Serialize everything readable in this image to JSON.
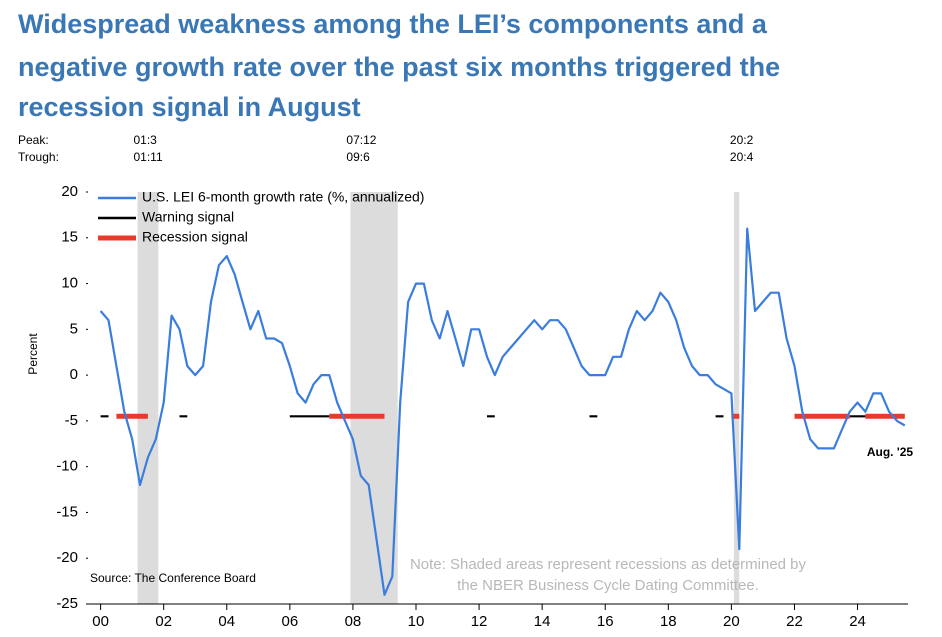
{
  "chart_data": {
    "type": "line",
    "title": [
      "Widespread weakness among the LEI’s components and a",
      "negative growth rate over the past six months triggered the",
      "recession signal in August"
    ],
    "peak_label": "Peak:",
    "trough_label": "Trough:",
    "recessions": [
      {
        "peak": "01:3",
        "trough": "01:11",
        "start": 2001.17,
        "end": 2001.83
      },
      {
        "peak": "07:12",
        "trough": "09:6",
        "start": 2007.92,
        "end": 2009.42
      },
      {
        "peak": "20:2",
        "trough": "20:4",
        "start": 2020.08,
        "end": 2020.25
      }
    ],
    "y_label": "Percent",
    "source": "Source: The Conference Board",
    "note": [
      "Note: Shaded areas represent recessions as determined by",
      "the NBER Business Cycle Dating Committee."
    ],
    "annotation": "Aug. '25",
    "xlim": [
      1999.6,
      2025.6
    ],
    "xticks": [
      {
        "value": 2000,
        "label": "00"
      },
      {
        "value": 2002,
        "label": "02"
      },
      {
        "value": 2004,
        "label": "04"
      },
      {
        "value": 2006,
        "label": "06"
      },
      {
        "value": 2008,
        "label": "08"
      },
      {
        "value": 2010,
        "label": "10"
      },
      {
        "value": 2012,
        "label": "12"
      },
      {
        "value": 2014,
        "label": "14"
      },
      {
        "value": 2016,
        "label": "16"
      },
      {
        "value": 2018,
        "label": "18"
      },
      {
        "value": 2020,
        "label": "20"
      },
      {
        "value": 2022,
        "label": "22"
      },
      {
        "value": 2024,
        "label": "24"
      }
    ],
    "ylim": [
      -25,
      20
    ],
    "yticks": [
      -25,
      -20,
      -15,
      -10,
      -5,
      0,
      5,
      10,
      15,
      20
    ],
    "x": [
      2000,
      2000.25,
      2000.5,
      2000.75,
      2001,
      2001.25,
      2001.5,
      2001.75,
      2002,
      2002.25,
      2002.5,
      2002.75,
      2003,
      2003.25,
      2003.5,
      2003.75,
      2004,
      2004.25,
      2004.5,
      2004.75,
      2005,
      2005.25,
      2005.5,
      2005.75,
      2006,
      2006.25,
      2006.5,
      2006.75,
      2007,
      2007.25,
      2007.5,
      2007.75,
      2008,
      2008.25,
      2008.5,
      2008.75,
      2009,
      2009.25,
      2009.5,
      2009.75,
      2010,
      2010.25,
      2010.5,
      2010.75,
      2011,
      2011.25,
      2011.5,
      2011.75,
      2012,
      2012.25,
      2012.5,
      2012.75,
      2013,
      2013.25,
      2013.5,
      2013.75,
      2014,
      2014.25,
      2014.5,
      2014.75,
      2015,
      2015.25,
      2015.5,
      2015.75,
      2016,
      2016.25,
      2016.5,
      2016.75,
      2017,
      2017.25,
      2017.5,
      2017.75,
      2018,
      2018.25,
      2018.5,
      2018.75,
      2019,
      2019.25,
      2019.5,
      2019.75,
      2020,
      2020.25,
      2020.5,
      2020.75,
      2021,
      2021.25,
      2021.5,
      2021.75,
      2022,
      2022.25,
      2022.5,
      2022.75,
      2023,
      2023.25,
      2023.5,
      2023.75,
      2024,
      2024.25,
      2024.5,
      2024.75,
      2025,
      2025.25,
      2025.5
    ],
    "series": [
      {
        "name": "U.S. LEI 6-month growth rate (%, annualized)",
        "color": "#3b7ddd",
        "values": [
          7,
          6,
          1,
          -4,
          -7,
          -12,
          -9,
          -7,
          -3,
          6.5,
          5,
          1,
          0,
          1,
          8,
          12,
          13,
          11,
          8,
          5,
          7,
          4,
          4,
          3.5,
          1,
          -2,
          -3,
          -1,
          0,
          0,
          -3,
          -5,
          -7,
          -11,
          -12,
          -18,
          -24,
          -22,
          -3,
          8,
          10,
          10,
          6,
          4,
          7,
          4,
          1,
          5,
          5,
          2,
          0,
          2,
          3,
          4,
          5,
          6,
          5,
          6,
          6,
          5,
          3,
          1,
          0,
          0,
          0,
          2,
          2,
          5,
          7,
          6,
          7,
          9,
          8,
          6,
          3,
          1,
          0,
          0,
          -1,
          -1.5,
          -2,
          -19,
          16,
          7,
          8,
          9,
          9,
          4,
          1,
          -4,
          -7,
          -8,
          -8,
          -8,
          -6,
          -4,
          -3,
          -4,
          -2,
          -2,
          -4,
          -5,
          -5.5
        ]
      },
      {
        "name": "Warning signal",
        "color": "#000000",
        "values": [
          -4.5,
          -4.5,
          null,
          null,
          null,
          null,
          null,
          null,
          null,
          null,
          -4.5,
          -4.5,
          null,
          null,
          null,
          null,
          null,
          null,
          null,
          null,
          null,
          null,
          null,
          null,
          -4.5,
          -4.5,
          -4.5,
          -4.5,
          -4.5,
          -4.5,
          null,
          null,
          null,
          null,
          null,
          null,
          null,
          null,
          null,
          null,
          null,
          null,
          null,
          null,
          null,
          null,
          null,
          null,
          null,
          -4.5,
          -4.5,
          null,
          null,
          null,
          null,
          null,
          null,
          null,
          null,
          null,
          null,
          null,
          -4.5,
          -4.5,
          null,
          null,
          null,
          null,
          null,
          null,
          null,
          null,
          null,
          null,
          null,
          null,
          null,
          null,
          -4.5,
          -4.5,
          null,
          null,
          null,
          null,
          null,
          null,
          null,
          null,
          null,
          null,
          null,
          null,
          null,
          null,
          null,
          -4.5,
          -4.5,
          -4.5,
          null,
          null,
          null,
          null,
          null
        ]
      },
      {
        "name": "Recession signal",
        "color": "#e8392b",
        "values": [
          null,
          null,
          -4.5,
          -4.5,
          -4.5,
          -4.5,
          -4.5,
          null,
          null,
          null,
          null,
          null,
          null,
          null,
          null,
          null,
          null,
          null,
          null,
          null,
          null,
          null,
          null,
          null,
          null,
          null,
          null,
          null,
          null,
          -4.5,
          -4.5,
          -4.5,
          -4.5,
          -4.5,
          -4.5,
          -4.5,
          -4.5,
          null,
          null,
          null,
          null,
          null,
          null,
          null,
          null,
          null,
          null,
          null,
          null,
          null,
          null,
          null,
          null,
          null,
          null,
          null,
          null,
          null,
          null,
          null,
          null,
          null,
          null,
          null,
          null,
          null,
          null,
          null,
          null,
          null,
          null,
          null,
          null,
          null,
          null,
          null,
          null,
          null,
          null,
          null,
          -4.5,
          -4.5,
          null,
          null,
          null,
          null,
          null,
          null,
          -4.5,
          -4.5,
          -4.5,
          -4.5,
          -4.5,
          -4.5,
          -4.5,
          -4.5,
          null,
          -4.5,
          -4.5,
          -4.5,
          -4.5,
          -4.5,
          -4.5
        ]
      }
    ],
    "recession_color": "#dcdcdc"
  }
}
